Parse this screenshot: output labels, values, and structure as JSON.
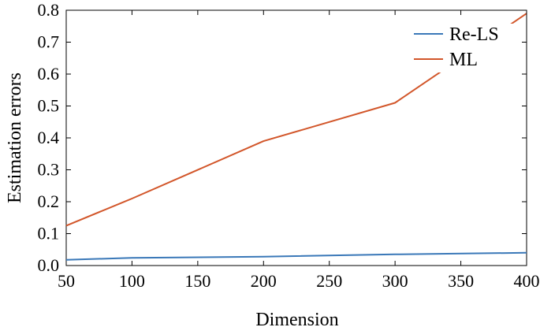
{
  "chart_data": {
    "type": "line",
    "title": "",
    "xlabel": "Dimension",
    "ylabel": "Estimation errors",
    "xlim": [
      50,
      400
    ],
    "ylim": [
      0,
      0.8
    ],
    "xticks": [
      "50",
      "100",
      "150",
      "200",
      "250",
      "300",
      "350",
      "400"
    ],
    "yticks": [
      "0.0",
      "0.1",
      "0.2",
      "0.3",
      "0.4",
      "0.5",
      "0.6",
      "0.7",
      "0.8"
    ],
    "grid": false,
    "legend_position": "top-right",
    "series": [
      {
        "name": "Re-LS",
        "color": "#3a78b8",
        "x": [
          50,
          100,
          200,
          300,
          400
        ],
        "y": [
          0.018,
          0.024,
          0.028,
          0.035,
          0.04
        ]
      },
      {
        "name": "ML",
        "color": "#d2562a",
        "x": [
          50,
          100,
          200,
          300,
          400
        ],
        "y": [
          0.125,
          0.21,
          0.39,
          0.51,
          0.79
        ]
      }
    ]
  }
}
